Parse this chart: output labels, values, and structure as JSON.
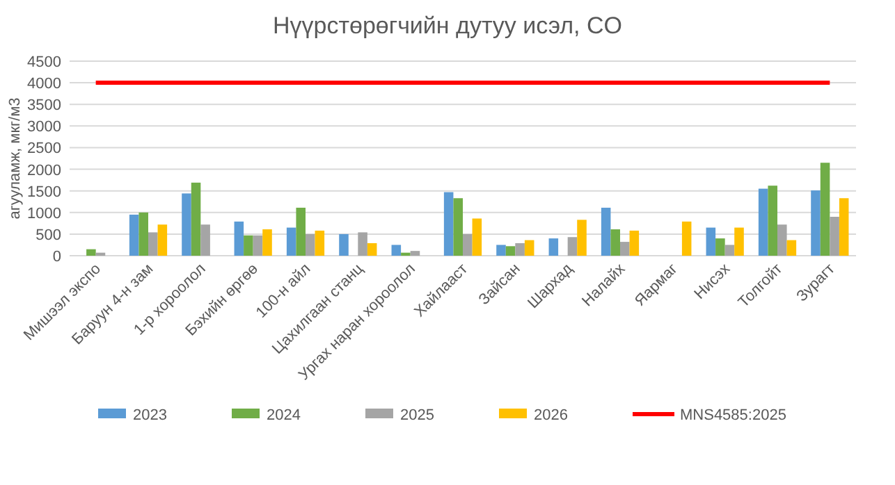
{
  "chart_data": {
    "type": "bar",
    "title": "Нүүрстөрөгчийн дутуу исэл, CO",
    "ylabel": "агууламж, мкг/м3",
    "categories": [
      "Мишээл экспо",
      "Баруун 4-н зам",
      "1-р хороолол",
      "Бэхийн өргөө",
      "100-н айл",
      "Цахилгаан станц",
      "Ургах наран хороолол",
      "Хайлааст",
      "Зайсан",
      "Шархад",
      "Налайх",
      "Яармаг",
      "Нисэх",
      "Толгойт",
      "Зурагт"
    ],
    "series": [
      {
        "name": "2023",
        "color": "#5b9bd5",
        "values": [
          null,
          950,
          1440,
          790,
          650,
          500,
          250,
          1470,
          250,
          400,
          1110,
          null,
          650,
          1550,
          1510
        ]
      },
      {
        "name": "2024",
        "color": "#70ad47",
        "values": [
          150,
          1000,
          1690,
          470,
          1110,
          null,
          70,
          1330,
          220,
          null,
          610,
          null,
          400,
          1620,
          2150
        ]
      },
      {
        "name": "2025",
        "color": "#a5a5a5",
        "values": [
          70,
          540,
          720,
          470,
          500,
          540,
          110,
          500,
          290,
          430,
          320,
          null,
          250,
          720,
          900
        ]
      },
      {
        "name": "2026",
        "color": "#ffc000",
        "values": [
          null,
          720,
          null,
          610,
          580,
          290,
          null,
          860,
          360,
          830,
          580,
          790,
          650,
          360,
          1330
        ]
      },
      {
        "name": "MNS4585:2025",
        "type": "line",
        "color": "#ff0000",
        "values": [
          4000,
          4000,
          4000,
          4000,
          4000,
          4000,
          4000,
          4000,
          4000,
          4000,
          4000,
          4000,
          4000,
          4000,
          4000
        ]
      }
    ],
    "ylim": [
      0,
      4500
    ],
    "yticks": [
      0,
      500,
      1000,
      1500,
      2000,
      2500,
      3000,
      3500,
      4000,
      4500
    ],
    "grid": "y",
    "legend": "bottom"
  }
}
